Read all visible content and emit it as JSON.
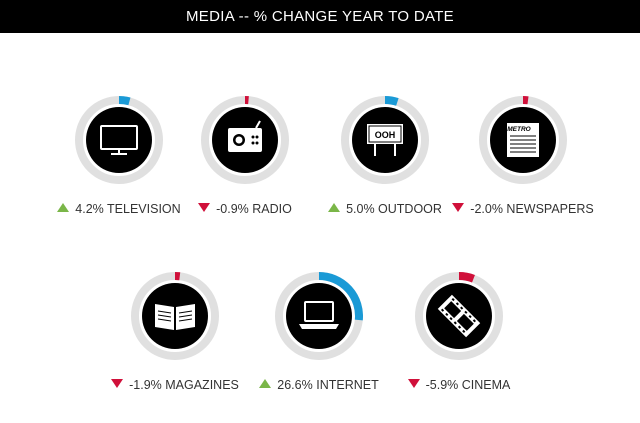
{
  "title": "MEDIA -- % CHANGE YEAR TO DATE",
  "colors": {
    "up": "#7ab648",
    "down": "#d0103a",
    "arc_up": "#1a9ad6",
    "arc_down": "#d0103a",
    "track": "#e0e0e0",
    "disc": "#000000"
  },
  "chart_data": {
    "type": "radial-gauge",
    "title": "MEDIA -- % CHANGE YEAR TO DATE",
    "items": [
      {
        "name": "TELEVISION",
        "value": 4.2,
        "value_text": "4.2%",
        "direction": "up",
        "icon": "television-icon"
      },
      {
        "name": "RADIO",
        "value": -0.9,
        "value_text": "-0.9%",
        "direction": "down",
        "icon": "radio-icon"
      },
      {
        "name": "OUTDOOR",
        "value": 5.0,
        "value_text": "5.0%",
        "direction": "up",
        "icon": "billboard-icon"
      },
      {
        "name": "NEWSPAPERS",
        "value": -2.0,
        "value_text": "-2.0%",
        "direction": "down",
        "icon": "newspaper-icon"
      },
      {
        "name": "MAGAZINES",
        "value": -1.9,
        "value_text": "-1.9%",
        "direction": "down",
        "icon": "magazine-icon"
      },
      {
        "name": "INTERNET",
        "value": 26.6,
        "value_text": "26.6%",
        "direction": "up",
        "icon": "laptop-icon"
      },
      {
        "name": "CINEMA",
        "value": -5.9,
        "value_text": "-5.9%",
        "direction": "down",
        "icon": "film-icon"
      }
    ]
  },
  "icon_text": {
    "billboard": "OOH",
    "newspaper": "METRO"
  }
}
